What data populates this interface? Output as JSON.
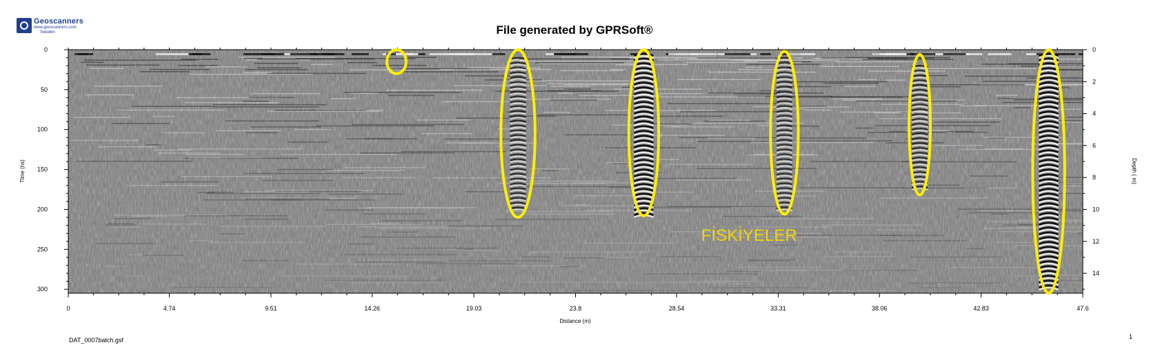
{
  "logo": {
    "name": "Geoscanners",
    "url": "www.geoscanners.com",
    "sub": "Sweden"
  },
  "title": "File generated by GPRSoft®",
  "filename": "DAT_0007batch.gsf",
  "page_number": "1",
  "chart_data": {
    "type": "heatmap",
    "title": "File generated by GPRSoft®",
    "xlabel": "Distance (m)",
    "ylabel": "Time (ns)",
    "y2label": "Depth ( m)",
    "xlim": [
      0,
      47.6
    ],
    "ylim": [
      0,
      305
    ],
    "y2lim": [
      0,
      15.25
    ],
    "x_ticks": [
      "0",
      "4.74",
      "9.51",
      "14.26",
      "19.03",
      "23.8",
      "28.54",
      "33.31",
      "38.06",
      "42.83",
      "47.6"
    ],
    "x_tick_values": [
      0,
      4.74,
      9.51,
      14.26,
      19.03,
      23.8,
      28.54,
      33.31,
      38.06,
      42.83,
      47.6
    ],
    "y_ticks": [
      "0",
      "50",
      "100",
      "150",
      "200",
      "250",
      "300"
    ],
    "y_tick_values": [
      0,
      50,
      100,
      150,
      200,
      250,
      300
    ],
    "y2_ticks": [
      "0",
      "2",
      "4",
      "6",
      "8",
      "10",
      "12",
      "14"
    ],
    "y2_tick_values": [
      0,
      2,
      4,
      6,
      8,
      10,
      12,
      14
    ],
    "colormap": "grayscale",
    "grid": false,
    "annotation_color": "#ffee00",
    "annotations": [
      {
        "x": 15.4,
        "t_top": 0,
        "t_bottom": 30,
        "half_width_m": 0.45
      },
      {
        "x": 21.1,
        "t_top": 0,
        "t_bottom": 210,
        "half_width_m": 0.8
      },
      {
        "x": 27.0,
        "t_top": 0,
        "t_bottom": 208,
        "half_width_m": 0.7
      },
      {
        "x": 33.6,
        "t_top": 2,
        "t_bottom": 206,
        "half_width_m": 0.65
      },
      {
        "x": 39.95,
        "t_top": 6,
        "t_bottom": 182,
        "half_width_m": 0.5
      },
      {
        "x": 46.0,
        "t_top": 0,
        "t_bottom": 305,
        "half_width_m": 0.75
      }
    ],
    "annotation_text": {
      "label": "FİSKİYELER",
      "x": 29.7,
      "t": 222
    },
    "features": [
      {
        "x": 21.1,
        "t_top": 10,
        "t_bottom": 200,
        "strength": 0.6
      },
      {
        "x": 27.0,
        "t_top": 5,
        "t_bottom": 205,
        "strength": 1.0
      },
      {
        "x": 33.6,
        "t_top": 10,
        "t_bottom": 200,
        "strength": 0.55
      },
      {
        "x": 39.95,
        "t_top": 20,
        "t_bottom": 175,
        "strength": 0.6
      },
      {
        "x": 46.0,
        "t_top": 5,
        "t_bottom": 300,
        "strength": 1.0
      }
    ]
  }
}
